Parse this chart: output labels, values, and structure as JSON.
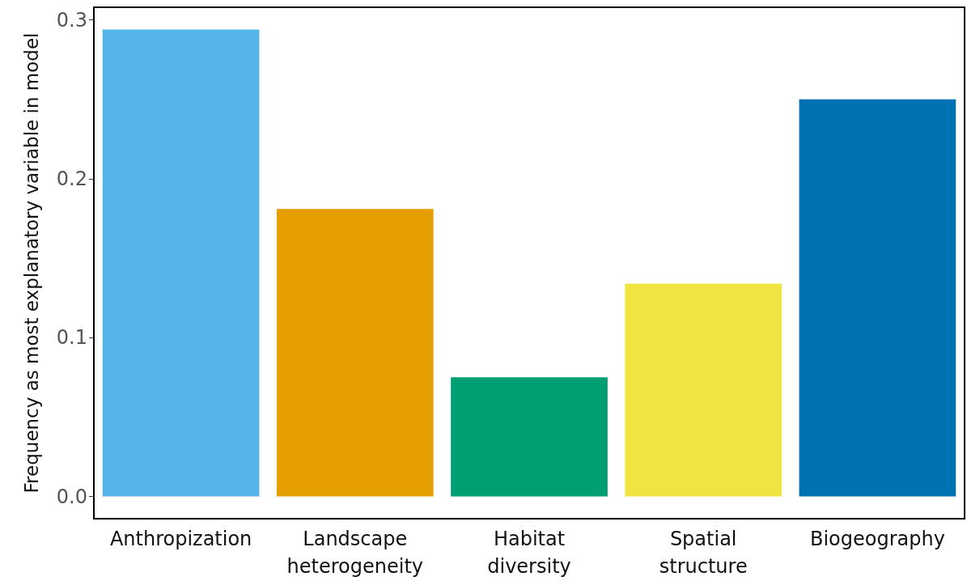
{
  "chart_data": {
    "type": "bar",
    "ylabel": "Frequency as most explanatory variable in model",
    "categories": [
      "Anthropization",
      "Landscape heterogeneity",
      "Habitat diversity",
      "Spatial structure",
      "Biogeography"
    ],
    "values": [
      0.294,
      0.181,
      0.075,
      0.134,
      0.25
    ],
    "colors": [
      "#56b4e9",
      "#e69f00",
      "#009e73",
      "#f0e442",
      "#0072b2"
    ],
    "ylim": [
      -0.014,
      0.308
    ],
    "yticks": [
      {
        "value": 0,
        "label": "0.0"
      },
      0.1,
      0.2,
      0.3
    ],
    "grid": false
  }
}
